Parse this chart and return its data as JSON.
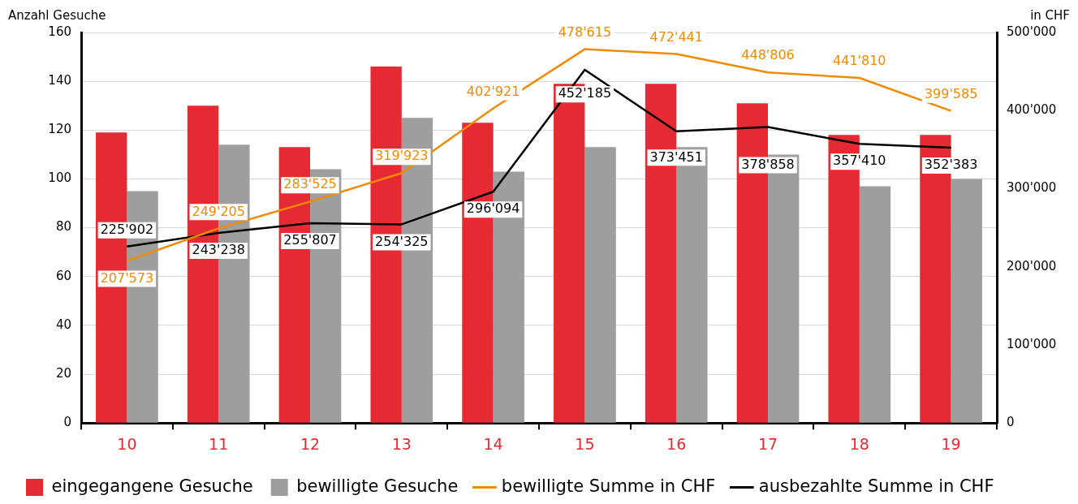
{
  "chart_data": {
    "type": "bar",
    "ylabel": "Anzahl Gesuche",
    "y2label": "in CHF",
    "categories": [
      "10",
      "11",
      "12",
      "13",
      "14",
      "15",
      "16",
      "17",
      "18",
      "19"
    ],
    "series": [
      {
        "name": "eingegangene Gesuche",
        "color": "#e52a34",
        "values": [
          119,
          130,
          113,
          146,
          123,
          139,
          139,
          131,
          118,
          118
        ]
      },
      {
        "name": "bewilligte Gesuche",
        "color": "#9d9e9d",
        "values": [
          95,
          114,
          104,
          125,
          103,
          113,
          113,
          110,
          97,
          100
        ]
      },
      {
        "name": "bewilligte Summe in CHF",
        "type": "line",
        "axis": "y2",
        "color": "#f08a00",
        "values": [
          207573,
          249205,
          283525,
          319923,
          402921,
          478615,
          472441,
          448806,
          441810,
          399585
        ],
        "value_labels": [
          "207'573",
          "249'205",
          "283'525",
          "319'923",
          "402'921",
          "478'615",
          "472'441",
          "448'806",
          "441'810",
          "399'585"
        ]
      },
      {
        "name": "ausbezahlte Summe in CHF",
        "type": "line",
        "axis": "y2",
        "color": "#000000",
        "values": [
          225902,
          243238,
          255807,
          254325,
          296094,
          452185,
          373451,
          378858,
          357410,
          352383
        ],
        "value_labels": [
          "225'902",
          "243'238",
          "255'807",
          "254'325",
          "296'094",
          "452'185",
          "373'451",
          "378'858",
          "357'410",
          "352'383"
        ]
      }
    ],
    "ylim": [
      0,
      160
    ],
    "yticks": [
      0,
      20,
      40,
      60,
      80,
      100,
      120,
      140,
      160
    ],
    "y2lim": [
      0,
      500000
    ],
    "y2ticks": [
      0,
      {
        "value": 100000,
        "label": "100'000"
      },
      {
        "value": 200000,
        "label": "200'000"
      },
      {
        "value": 300000,
        "label": "300'000"
      },
      {
        "value": 400000,
        "label": "400'000"
      },
      {
        "value": 500000,
        "label": "500'000"
      }
    ],
    "grid": "y",
    "legend": "bottom left",
    "marker": "none",
    "line_style": "solid"
  }
}
